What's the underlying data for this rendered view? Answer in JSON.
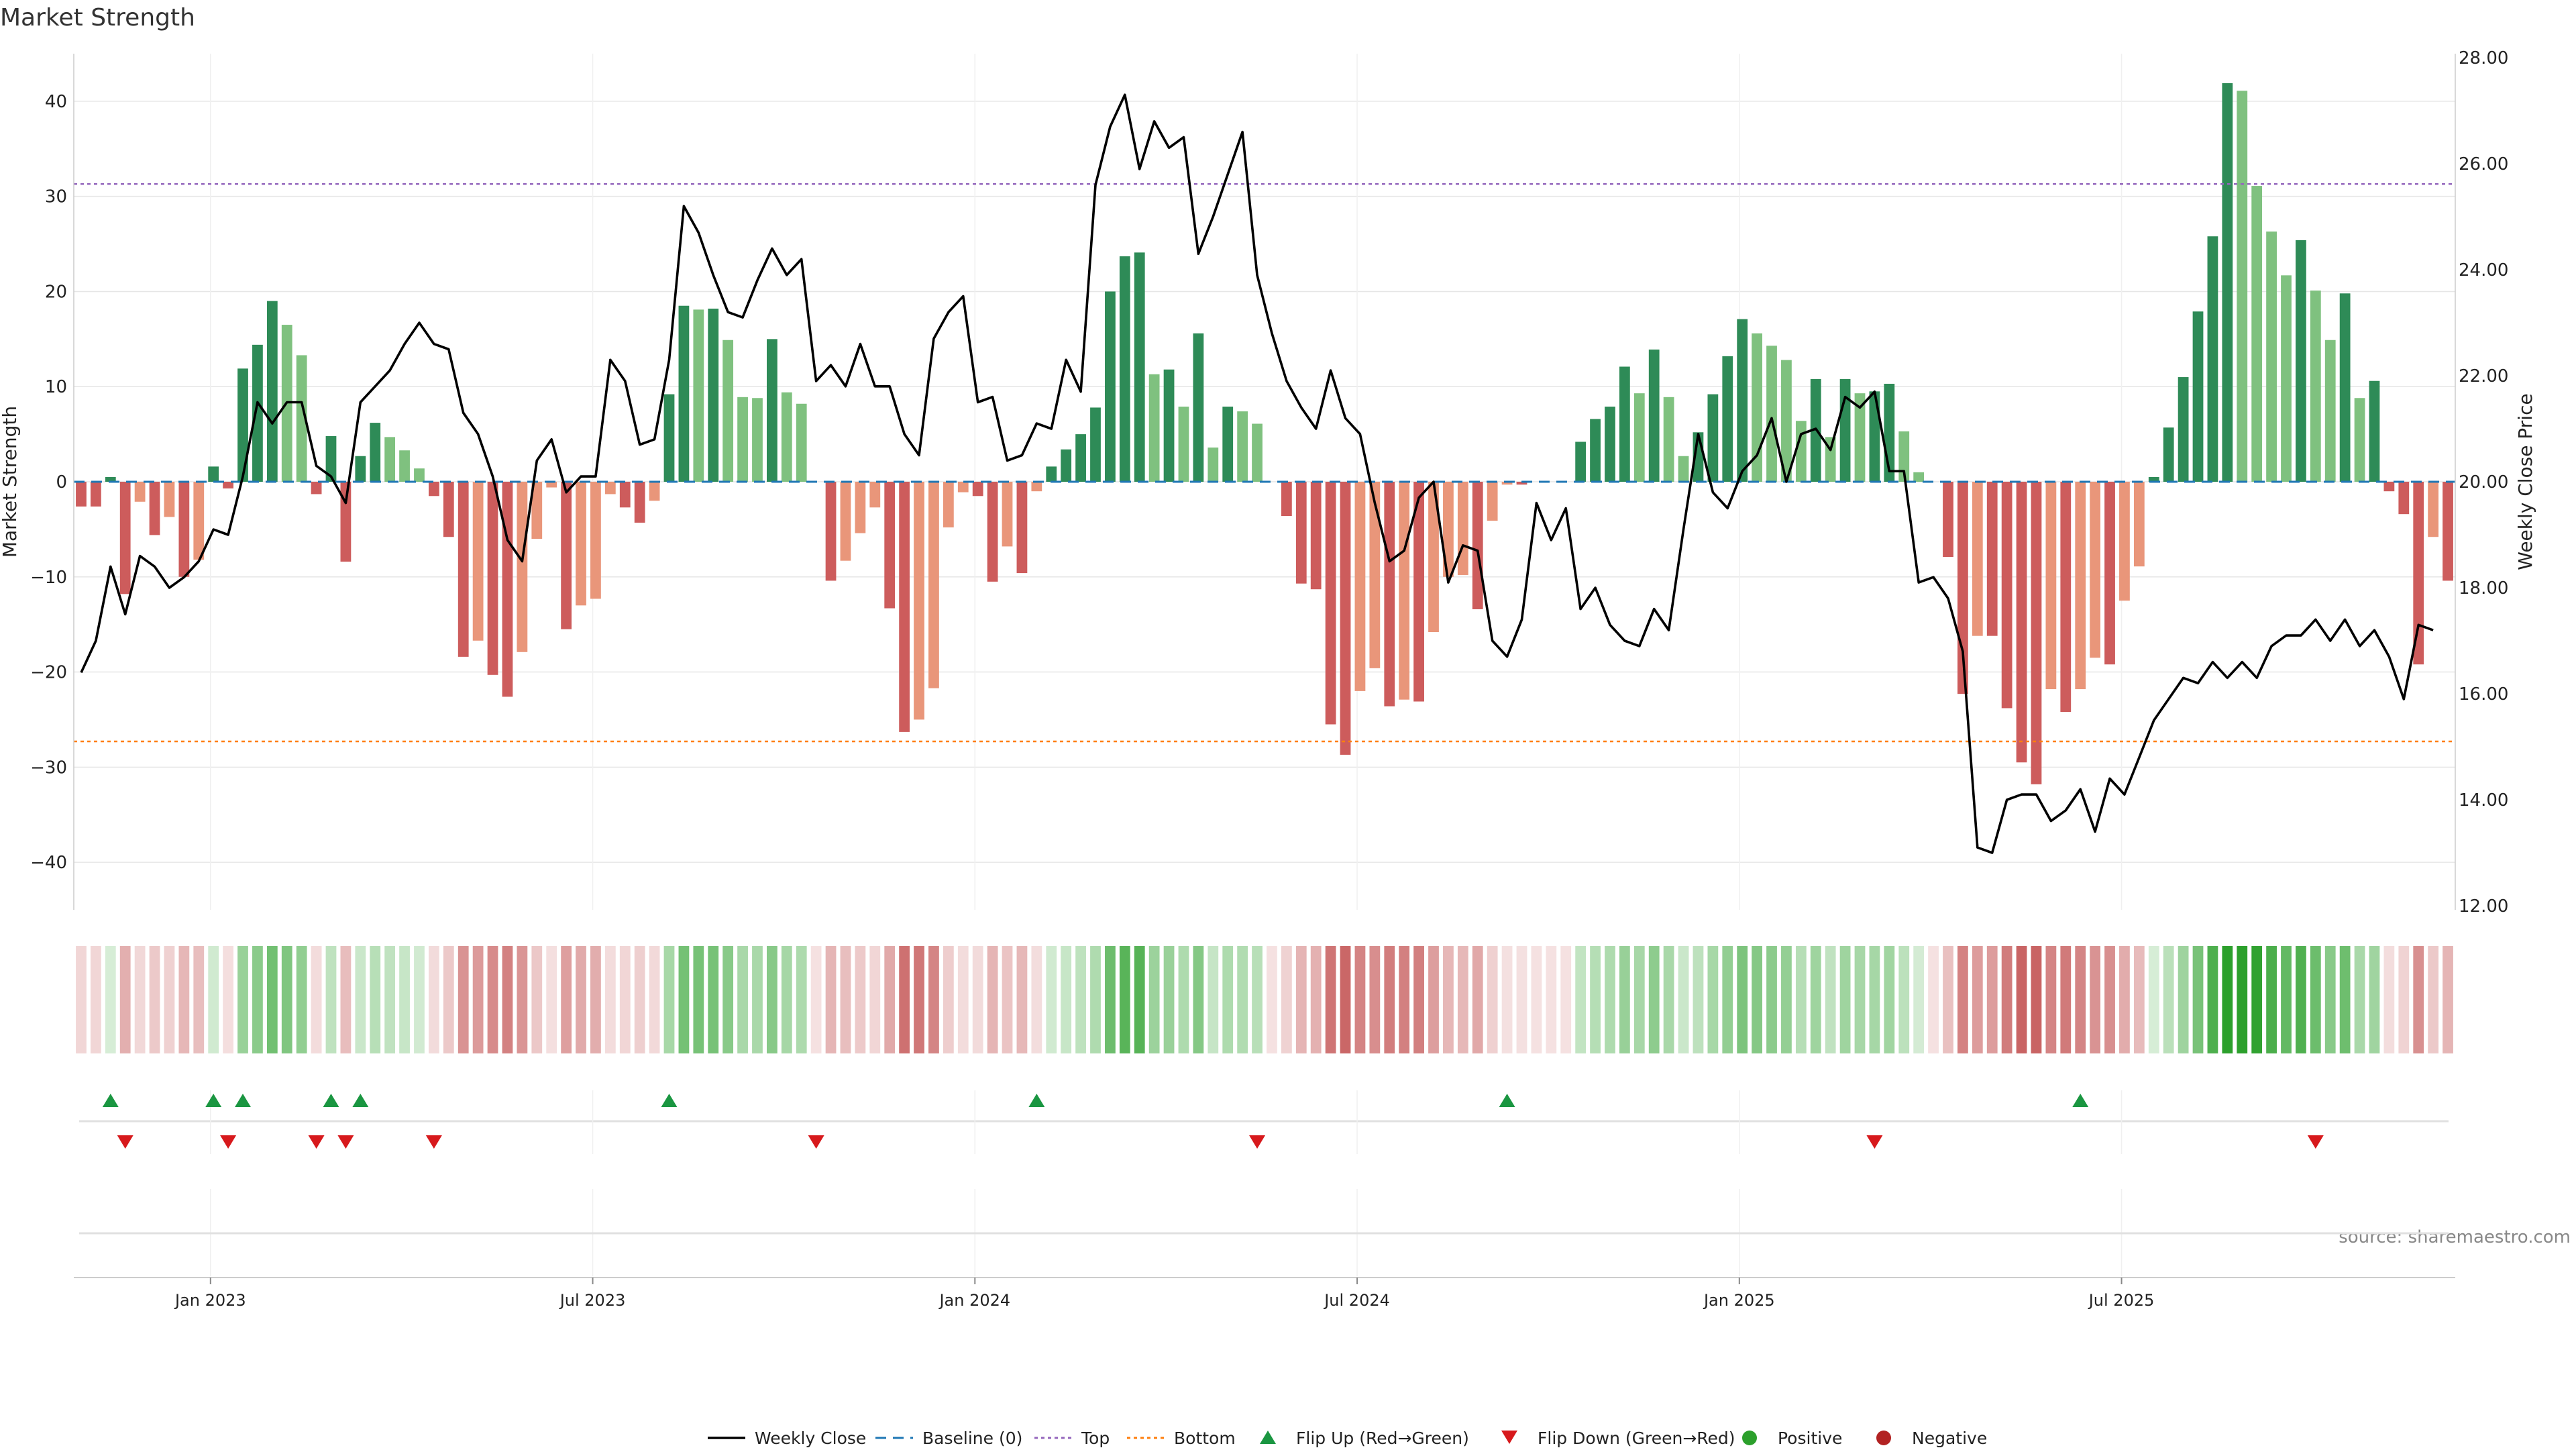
{
  "chart_data": {
    "type": "bar",
    "title": "Market Strength",
    "ylabel_left": "Market Strength",
    "ylabel_right": "Weekly Close Price",
    "source_note": "source: sharemaestro.com",
    "ylim_left": [
      -45,
      45
    ],
    "yticks_left": [
      "40",
      "30",
      "20",
      "10",
      "0",
      "−10",
      "−20",
      "−30",
      "−40"
    ],
    "ytick_values_left": [
      40,
      30,
      20,
      10,
      0,
      -10,
      -20,
      -30,
      -40
    ],
    "ylim_right": [
      12,
      28
    ],
    "yticks_right": [
      "28.00",
      "26.00",
      "24.00",
      "22.00",
      "20.00",
      "18.00",
      "16.00",
      "14.00",
      "12.00"
    ],
    "ytick_values_right": [
      28,
      26,
      24,
      22,
      20,
      18,
      16,
      14,
      12
    ],
    "x_tick_labels": [
      "Jan 2023",
      "Jul 2023",
      "Jan 2024",
      "Jul 2024",
      "Jan 2025",
      "Jul 2025"
    ],
    "x_tick_weeks": [
      9.3,
      35.3,
      61.3,
      87.3,
      113.3,
      139.3
    ],
    "reference_lines": {
      "top": 31.3,
      "bottom": -27.3,
      "baseline": 0
    },
    "grid": true,
    "legend_position": "bottom-center",
    "legend": [
      {
        "label": "Weekly Close",
        "symbol": "line-solid",
        "color": "#000000"
      },
      {
        "label": "Baseline (0)",
        "symbol": "line-dashed",
        "color": "#1f77b4"
      },
      {
        "label": "Top",
        "symbol": "line-dotted",
        "color": "#9467bd"
      },
      {
        "label": "Bottom",
        "symbol": "line-dotted",
        "color": "#ff7f0e"
      },
      {
        "label": "Flip Up (Red→Green)",
        "symbol": "triangle-up",
        "color": "#1a9641"
      },
      {
        "label": "Flip Down (Green→Red)",
        "symbol": "triangle-down",
        "color": "#d7191c"
      },
      {
        "label": "Positive",
        "symbol": "dot",
        "color": "#2ca02c"
      },
      {
        "label": "Negative",
        "symbol": "dot",
        "color": "#b22222"
      }
    ],
    "colors": {
      "pos_strong": "#2e8b57",
      "pos_weak": "#7fc17f",
      "neg_strong": "#cd5c5c",
      "neg_weak": "#e9967a",
      "close_line": "#000000",
      "flip_up": "#1a9641",
      "flip_down": "#d7191c"
    },
    "series": [
      {
        "name": "Market Strength",
        "values": [
          -2.6,
          -2.6,
          0.5,
          -11.8,
          -2.1,
          -5.6,
          -3.7,
          -10.0,
          -8.2,
          1.6,
          -0.7,
          11.9,
          14.4,
          19.0,
          16.5,
          13.3,
          -1.3,
          4.8,
          -8.4,
          2.7,
          6.2,
          4.7,
          3.3,
          1.4,
          -1.5,
          -5.8,
          -18.4,
          -16.7,
          -20.3,
          -22.6,
          -17.9,
          -6.0,
          -0.6,
          -15.5,
          -13.0,
          -12.3,
          -1.3,
          -2.7,
          -4.3,
          -2.0,
          9.2,
          18.5,
          18.1,
          18.2,
          14.9,
          8.9,
          8.8,
          15.0,
          9.4,
          8.2,
          0,
          -10.4,
          -8.3,
          -5.4,
          -2.7,
          -13.3,
          -26.3,
          -25.0,
          -21.7,
          -4.8,
          -1.1,
          -1.5,
          -10.5,
          -6.8,
          -9.6,
          -1.0,
          1.6,
          3.4,
          5.0,
          7.8,
          20.0,
          23.7,
          24.1,
          11.3,
          11.8,
          7.9,
          15.6,
          3.6,
          7.9,
          7.4,
          6.1,
          0,
          -3.6,
          -10.7,
          -11.3,
          -25.5,
          -28.7,
          -22.0,
          -19.6,
          -23.6,
          -22.9,
          -23.1,
          -15.8,
          -10.0,
          -9.8,
          -13.4,
          -4.1,
          -0.3,
          -0.3,
          0,
          0,
          0,
          4.2,
          6.6,
          7.9,
          12.1,
          9.3,
          13.9,
          8.9,
          2.7,
          5.2,
          9.2,
          13.2,
          17.1,
          15.6,
          14.3,
          12.8,
          6.4,
          10.8,
          4.7,
          10.8,
          9.3,
          9.5,
          10.3,
          5.3,
          1.0,
          0,
          -7.9,
          -22.3,
          -16.2,
          -16.2,
          -23.8,
          -29.5,
          -31.8,
          -21.8,
          -24.2,
          -21.8,
          -18.5,
          -19.2,
          -12.5,
          -8.9,
          0.5,
          5.7,
          11.0,
          17.9,
          25.8,
          41.9,
          41.1,
          31.1,
          26.3,
          21.7,
          25.4,
          20.1,
          14.9,
          19.8,
          8.8,
          10.6,
          -1.0,
          -3.4,
          -19.2,
          -5.8,
          -10.4
        ]
      },
      {
        "name": "Weekly Close",
        "values": [
          16.4,
          17.0,
          18.4,
          17.5,
          18.6,
          18.4,
          18.0,
          18.2,
          18.5,
          19.1,
          19.0,
          20.1,
          21.5,
          21.1,
          21.5,
          21.5,
          20.3,
          20.1,
          19.6,
          21.5,
          21.8,
          22.1,
          22.6,
          23.0,
          22.6,
          22.5,
          21.3,
          20.9,
          20.1,
          18.9,
          18.5,
          20.4,
          20.8,
          19.8,
          20.1,
          20.1,
          22.3,
          21.9,
          20.7,
          20.8,
          22.3,
          25.2,
          24.7,
          23.9,
          23.2,
          23.1,
          23.8,
          24.4,
          23.9,
          24.2,
          21.9,
          22.2,
          21.8,
          22.6,
          21.8,
          21.8,
          20.9,
          20.5,
          22.7,
          23.2,
          23.5,
          21.5,
          21.6,
          20.4,
          20.5,
          21.1,
          21.0,
          22.3,
          21.7,
          25.6,
          26.7,
          27.3,
          25.9,
          26.8,
          26.3,
          26.5,
          24.3,
          25.0,
          25.8,
          26.6,
          23.9,
          22.8,
          21.9,
          21.4,
          21.0,
          22.1,
          21.2,
          20.9,
          19.6,
          18.5,
          18.7,
          19.7,
          20.0,
          18.1,
          18.8,
          18.7,
          17.0,
          16.7,
          17.4,
          19.6,
          18.9,
          19.5,
          17.6,
          18.0,
          17.3,
          17.0,
          16.9,
          17.6,
          17.2,
          19.1,
          20.9,
          19.8,
          19.5,
          20.2,
          20.5,
          21.2,
          20.0,
          20.9,
          21.0,
          20.6,
          21.6,
          21.4,
          21.7,
          20.2,
          20.2,
          18.1,
          18.2,
          17.8,
          16.8,
          13.1,
          13.0,
          14.0,
          14.1,
          14.1,
          13.6,
          13.8,
          14.2,
          13.4,
          14.4,
          14.1,
          14.8,
          15.5,
          15.9,
          16.3,
          16.2,
          16.6,
          16.3,
          16.6,
          16.3,
          16.9,
          17.1,
          17.1,
          17.4,
          17.0,
          17.4,
          16.9,
          17.2,
          16.7,
          15.9,
          17.3,
          17.2
        ]
      }
    ],
    "flip_up_weeks": [
      2,
      9,
      11,
      17,
      19,
      40,
      65,
      97,
      136
    ],
    "flip_down_weeks": [
      3,
      10,
      16,
      18,
      24,
      50,
      80,
      122,
      152
    ]
  }
}
